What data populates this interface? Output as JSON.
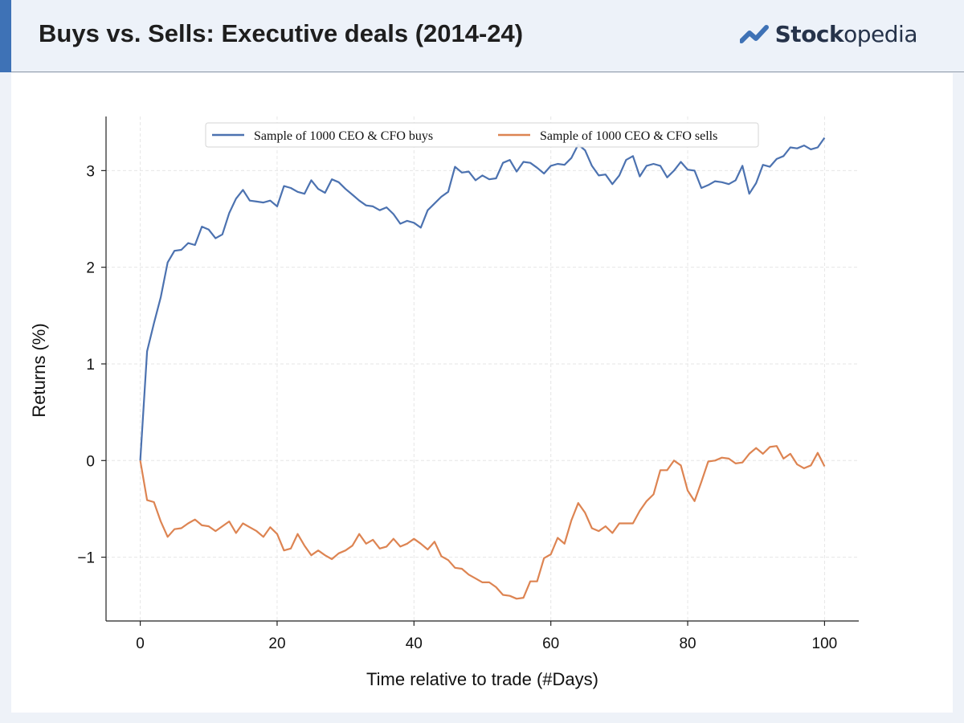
{
  "header": {
    "title": "Buys vs. Sells: Executive deals (2014-24)",
    "logo": {
      "icon": "stockopedia-logo-icon",
      "text_bold": "Stock",
      "text_regular": "opedia",
      "color": "#3e72b6"
    }
  },
  "chart_data": {
    "type": "line",
    "xlabel": "Time relative to trade (#Days)",
    "ylabel": "Returns (%)",
    "xlim": [
      -5,
      105
    ],
    "ylim": [
      -1.66,
      3.56
    ],
    "xticks": [
      0,
      20,
      40,
      60,
      80,
      100
    ],
    "yticks": [
      -1,
      0,
      1,
      2,
      3
    ],
    "ytick_labels": [
      "−1",
      "0",
      "1",
      "2",
      "3"
    ],
    "grid": true,
    "legend_position": "top-center",
    "series": [
      {
        "name": "Sample of 1000 CEO & CFO buys",
        "color": "#4c72b0",
        "x": [
          0,
          1,
          2,
          3,
          4,
          5,
          6,
          7,
          8,
          9,
          10,
          11,
          12,
          13,
          14,
          15,
          16,
          17,
          18,
          19,
          20,
          21,
          22,
          23,
          24,
          25,
          26,
          27,
          28,
          29,
          30,
          31,
          32,
          33,
          34,
          35,
          36,
          37,
          38,
          39,
          40,
          41,
          42,
          43,
          44,
          45,
          46,
          47,
          48,
          49,
          50,
          51,
          52,
          53,
          54,
          55,
          56,
          57,
          58,
          59,
          60,
          61,
          62,
          63,
          64,
          65,
          66,
          67,
          68,
          69,
          70,
          71,
          72,
          73,
          74,
          75,
          76,
          77,
          78,
          79,
          80,
          81,
          82,
          83,
          84,
          85,
          86,
          87,
          88,
          89,
          90,
          91,
          92,
          93,
          94,
          95,
          96,
          97,
          98,
          99,
          100
        ],
        "values": [
          0.0,
          1.13,
          1.42,
          1.69,
          2.05,
          2.17,
          2.18,
          2.25,
          2.23,
          2.42,
          2.39,
          2.3,
          2.34,
          2.56,
          2.71,
          2.8,
          2.69,
          2.68,
          2.67,
          2.69,
          2.63,
          2.84,
          2.82,
          2.78,
          2.76,
          2.9,
          2.81,
          2.77,
          2.91,
          2.88,
          2.81,
          2.75,
          2.69,
          2.64,
          2.63,
          2.59,
          2.62,
          2.55,
          2.45,
          2.48,
          2.46,
          2.41,
          2.59,
          2.66,
          2.73,
          2.78,
          3.04,
          2.98,
          2.99,
          2.9,
          2.95,
          2.91,
          2.92,
          3.08,
          3.11,
          2.99,
          3.09,
          3.08,
          3.03,
          2.97,
          3.05,
          3.07,
          3.06,
          3.13,
          3.27,
          3.21,
          3.05,
          2.95,
          2.96,
          2.86,
          2.95,
          3.11,
          3.15,
          2.94,
          3.05,
          3.07,
          3.05,
          2.93,
          3.0,
          3.09,
          3.01,
          3.0,
          2.82,
          2.85,
          2.89,
          2.88,
          2.86,
          2.9,
          3.05,
          2.76,
          2.87,
          3.06,
          3.04,
          3.12,
          3.15,
          3.24,
          3.23,
          3.26,
          3.22,
          3.24,
          3.34
        ]
      },
      {
        "name": "Sample of 1000 CEO & CFO sells",
        "color": "#dd8452",
        "x": [
          0,
          1,
          2,
          3,
          4,
          5,
          6,
          7,
          8,
          9,
          10,
          11,
          12,
          13,
          14,
          15,
          16,
          17,
          18,
          19,
          20,
          21,
          22,
          23,
          24,
          25,
          26,
          27,
          28,
          29,
          30,
          31,
          32,
          33,
          34,
          35,
          36,
          37,
          38,
          39,
          40,
          41,
          42,
          43,
          44,
          45,
          46,
          47,
          48,
          49,
          50,
          51,
          52,
          53,
          54,
          55,
          56,
          57,
          58,
          59,
          60,
          61,
          62,
          63,
          64,
          65,
          66,
          67,
          68,
          69,
          70,
          71,
          72,
          73,
          74,
          75,
          76,
          77,
          78,
          79,
          80,
          81,
          82,
          83,
          84,
          85,
          86,
          87,
          88,
          89,
          90,
          91,
          92,
          93,
          94,
          95,
          96,
          97,
          98,
          99,
          100
        ],
        "values": [
          0.0,
          -0.41,
          -0.43,
          -0.63,
          -0.79,
          -0.71,
          -0.7,
          -0.65,
          -0.61,
          -0.67,
          -0.68,
          -0.73,
          -0.68,
          -0.63,
          -0.75,
          -0.65,
          -0.69,
          -0.73,
          -0.79,
          -0.69,
          -0.76,
          -0.93,
          -0.91,
          -0.76,
          -0.88,
          -0.98,
          -0.93,
          -0.98,
          -1.02,
          -0.96,
          -0.93,
          -0.88,
          -0.76,
          -0.86,
          -0.82,
          -0.91,
          -0.89,
          -0.81,
          -0.89,
          -0.86,
          -0.81,
          -0.86,
          -0.92,
          -0.84,
          -0.99,
          -1.03,
          -1.11,
          -1.12,
          -1.18,
          -1.22,
          -1.26,
          -1.26,
          -1.31,
          -1.39,
          -1.4,
          -1.43,
          -1.42,
          -1.25,
          -1.25,
          -1.01,
          -0.97,
          -0.8,
          -0.86,
          -0.62,
          -0.44,
          -0.54,
          -0.7,
          -0.73,
          -0.68,
          -0.75,
          -0.65,
          -0.65,
          -0.65,
          -0.52,
          -0.42,
          -0.35,
          -0.1,
          -0.1,
          0.0,
          -0.05,
          -0.31,
          -0.42,
          -0.22,
          -0.01,
          0.0,
          0.03,
          0.02,
          -0.03,
          -0.02,
          0.07,
          0.13,
          0.07,
          0.14,
          0.15,
          0.02,
          0.07,
          -0.04,
          -0.08,
          -0.05,
          0.08,
          -0.06
        ]
      }
    ]
  }
}
